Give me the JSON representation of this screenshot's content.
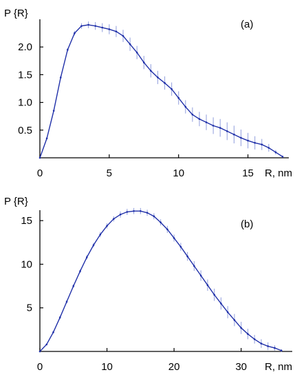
{
  "colors": {
    "curve": "#1f2fa8",
    "errorbar": "#9aa6e0",
    "axis": "#000000"
  },
  "chart_data": [
    {
      "type": "line",
      "panel_label": "(a)",
      "ylabel": "P {R}",
      "xlabel": "R, nm",
      "xlim": [
        0,
        17.6
      ],
      "ylim": [
        0,
        2.5
      ],
      "xticks": [
        0,
        5,
        10,
        15
      ],
      "yticks": [
        0.5,
        1.0,
        1.5,
        2.0
      ],
      "xtick_labels": [
        "0",
        "5",
        "10",
        "15"
      ],
      "ytick_labels": [
        "0.5",
        "1.0",
        "1.5",
        "2.0"
      ],
      "series": [
        {
          "x": [
            0,
            0.5,
            1,
            1.5,
            2,
            2.5,
            3,
            3.5,
            4,
            4.5,
            5,
            5.5,
            6,
            6.5,
            7,
            7.5,
            8,
            8.5,
            9,
            9.5,
            10,
            10.5,
            11,
            11.5,
            12,
            12.5,
            13,
            13.5,
            14,
            14.5,
            15,
            15.5,
            16,
            16.5,
            17,
            17.5
          ],
          "y": [
            0.0,
            0.35,
            0.85,
            1.45,
            1.95,
            2.25,
            2.38,
            2.4,
            2.38,
            2.35,
            2.32,
            2.28,
            2.2,
            2.05,
            1.9,
            1.72,
            1.57,
            1.45,
            1.35,
            1.24,
            1.08,
            0.92,
            0.78,
            0.7,
            0.64,
            0.58,
            0.54,
            0.48,
            0.42,
            0.36,
            0.31,
            0.27,
            0.24,
            0.18,
            0.1,
            0.02
          ],
          "err": [
            0.0,
            0.02,
            0.02,
            0.03,
            0.03,
            0.04,
            0.05,
            0.06,
            0.07,
            0.08,
            0.09,
            0.1,
            0.11,
            0.12,
            0.12,
            0.12,
            0.12,
            0.12,
            0.12,
            0.12,
            0.12,
            0.12,
            0.13,
            0.13,
            0.14,
            0.15,
            0.16,
            0.16,
            0.16,
            0.15,
            0.14,
            0.12,
            0.1,
            0.07,
            0.04,
            0.02
          ]
        }
      ]
    },
    {
      "type": "line",
      "panel_label": "(b)",
      "ylabel": "P {R}",
      "xlabel": "R, nm",
      "xlim": [
        0,
        36.8
      ],
      "ylim": [
        0,
        16.2
      ],
      "xticks": [
        0,
        10,
        20,
        30
      ],
      "yticks": [
        5,
        10,
        15
      ],
      "xtick_labels": [
        "0",
        "10",
        "20",
        "30"
      ],
      "ytick_labels": [
        "5",
        "10",
        "15"
      ],
      "series": [
        {
          "x": [
            0,
            1,
            2,
            3,
            4,
            5,
            6,
            7,
            8,
            9,
            10,
            11,
            12,
            13,
            14,
            15,
            16,
            17,
            18,
            19,
            20,
            21,
            22,
            23,
            24,
            25,
            26,
            27,
            28,
            29,
            30,
            31,
            32,
            33,
            34,
            35,
            36
          ],
          "y": [
            0.0,
            0.8,
            2.2,
            3.9,
            5.7,
            7.5,
            9.2,
            10.8,
            12.2,
            13.4,
            14.4,
            15.2,
            15.7,
            16.0,
            16.1,
            16.1,
            15.9,
            15.5,
            14.8,
            14.0,
            13.0,
            12.0,
            10.9,
            9.8,
            8.7,
            7.6,
            6.5,
            5.5,
            4.5,
            3.6,
            2.7,
            2.0,
            1.4,
            0.9,
            0.6,
            0.4,
            0.1
          ],
          "err": [
            0.0,
            0.1,
            0.15,
            0.2,
            0.2,
            0.2,
            0.2,
            0.25,
            0.25,
            0.3,
            0.3,
            0.3,
            0.35,
            0.35,
            0.35,
            0.35,
            0.35,
            0.35,
            0.35,
            0.4,
            0.4,
            0.45,
            0.5,
            0.55,
            0.6,
            0.65,
            0.7,
            0.7,
            0.7,
            0.7,
            0.7,
            0.6,
            0.5,
            0.5,
            0.45,
            0.3,
            0.15
          ]
        }
      ]
    }
  ]
}
